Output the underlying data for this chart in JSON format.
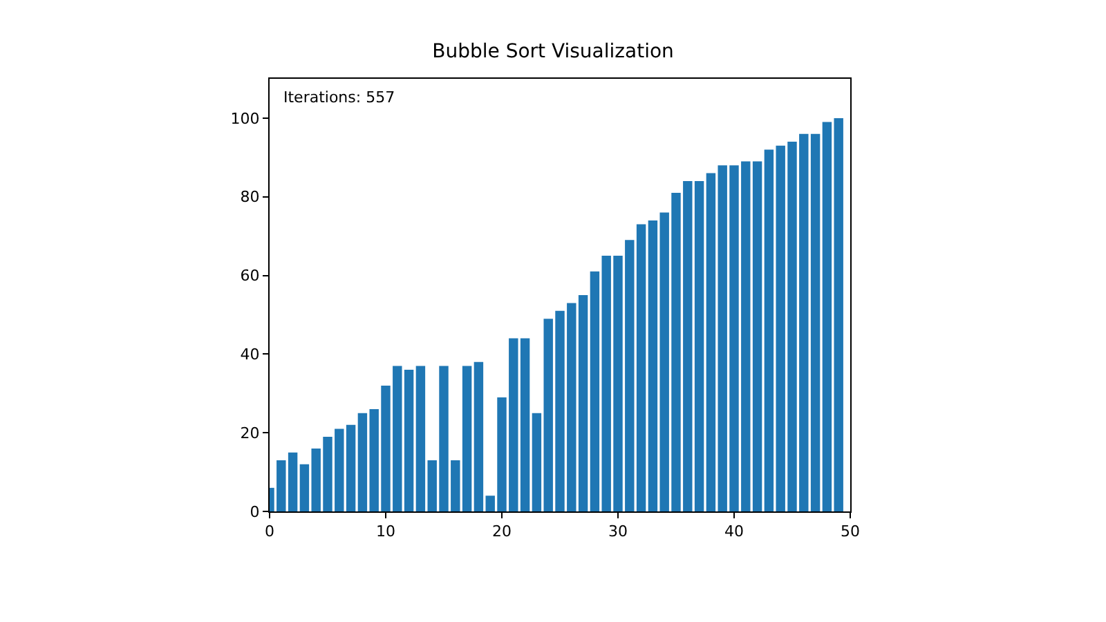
{
  "chart_data": {
    "type": "bar",
    "title": "Bubble Sort Visualization",
    "x": [
      0,
      1,
      2,
      3,
      4,
      5,
      6,
      7,
      8,
      9,
      10,
      11,
      12,
      13,
      14,
      15,
      16,
      17,
      18,
      19,
      20,
      21,
      22,
      23,
      24,
      25,
      26,
      27,
      28,
      29,
      30,
      31,
      32,
      33,
      34,
      35,
      36,
      37,
      38,
      39,
      40,
      41,
      42,
      43,
      44,
      45,
      46,
      47,
      48,
      49
    ],
    "values": [
      6,
      13,
      15,
      12,
      16,
      19,
      21,
      22,
      25,
      26,
      32,
      37,
      36,
      37,
      13,
      37,
      13,
      37,
      38,
      4,
      29,
      44,
      44,
      25,
      49,
      51,
      53,
      55,
      61,
      65,
      65,
      69,
      73,
      74,
      76,
      81,
      84,
      84,
      86,
      88,
      88,
      89,
      89,
      92,
      93,
      94,
      96,
      96,
      99,
      100
    ],
    "color": "#1f77b4",
    "xlim": [
      0,
      50
    ],
    "xticks": [
      0,
      10,
      20,
      30,
      40,
      50
    ],
    "ylim": [
      0,
      110
    ],
    "yticks": [
      0,
      20,
      40,
      60,
      80,
      100
    ],
    "annotations": [
      "Iterations: 557"
    ],
    "legend": false
  }
}
